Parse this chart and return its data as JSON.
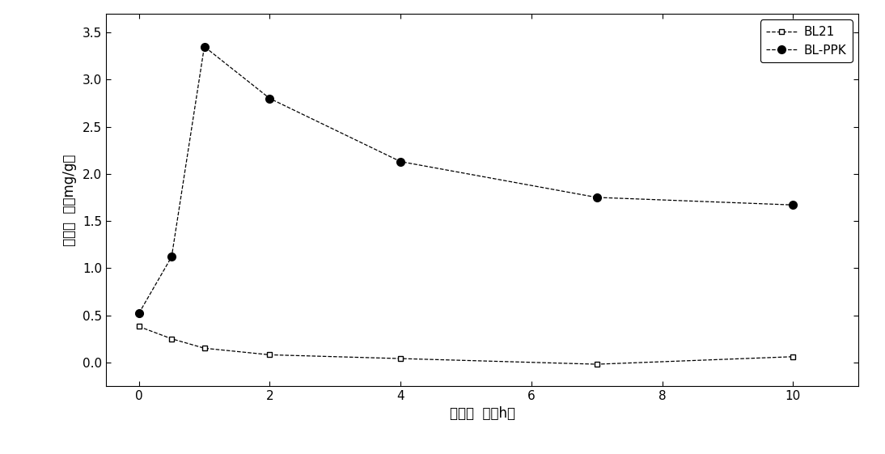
{
  "BL21_x": [
    0,
    0.5,
    1,
    2,
    4,
    7,
    10
  ],
  "BL21_y": [
    0.38,
    0.25,
    0.15,
    0.08,
    0.04,
    -0.02,
    0.06
  ],
  "BLPPK_x": [
    0,
    0.5,
    1,
    2,
    4,
    7,
    10
  ],
  "BLPPK_y": [
    0.52,
    1.12,
    3.35,
    2.8,
    2.13,
    1.75,
    1.67
  ],
  "xlabel": "培养时  间（h）",
  "ylabel": "聚磷浓  度（mg/g）",
  "legend_BL21": "BL21",
  "legend_BLPPK": "BL-PPK",
  "xlim": [
    -0.5,
    11
  ],
  "ylim": [
    -0.25,
    3.7
  ],
  "xticks": [
    0,
    2,
    4,
    6,
    8,
    10
  ],
  "yticks": [
    0.0,
    0.5,
    1.0,
    1.5,
    2.0,
    2.5,
    3.0,
    3.5
  ],
  "bg_color": "#ffffff",
  "line_color": "#000000",
  "figsize": [
    10.94,
    5.61
  ],
  "dpi": 100
}
